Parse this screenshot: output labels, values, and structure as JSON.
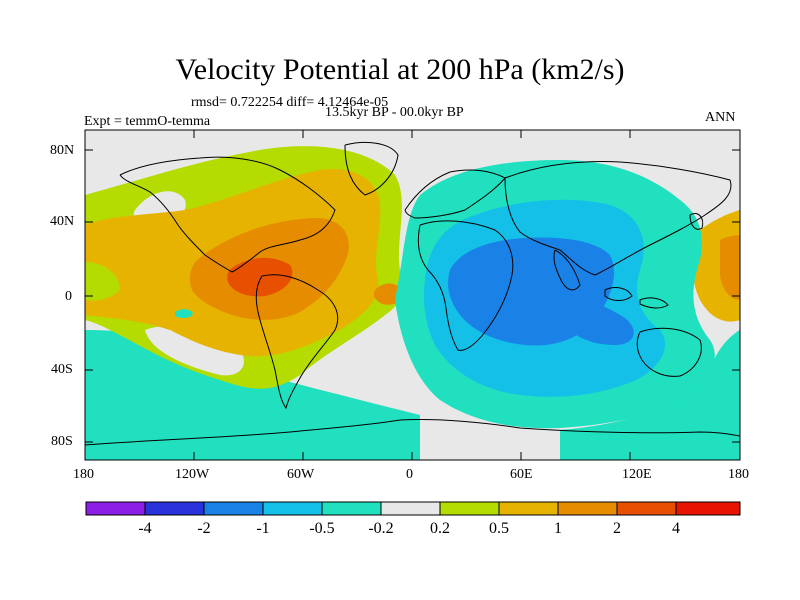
{
  "title": "Velocity Potential at 200 hPa (km2/s)",
  "stats": "rmsd= 0.722254  diff= 4.12464e-05",
  "experiment": "Expt = temmO-temma",
  "period": "13.5kyr BP - 00.0kyr BP",
  "season": "ANN",
  "lat_ticks": [
    "80N",
    "40N",
    "0",
    "40S",
    "80S"
  ],
  "lon_ticks": [
    "180",
    "120W",
    "60W",
    "0",
    "60E",
    "120E",
    "180"
  ],
  "colorbar": {
    "colors": [
      "#8c1ee6",
      "#2a32dc",
      "#1a82e6",
      "#14c0e8",
      "#20e0c0",
      "#e8e8e8",
      "#b4dc00",
      "#e6b400",
      "#e68c00",
      "#e65000",
      "#e61400"
    ],
    "labels": [
      "-4",
      "-2",
      "-1",
      "-0.5",
      "-0.2",
      "0.2",
      "0.5",
      "1",
      "2",
      "4"
    ]
  }
}
